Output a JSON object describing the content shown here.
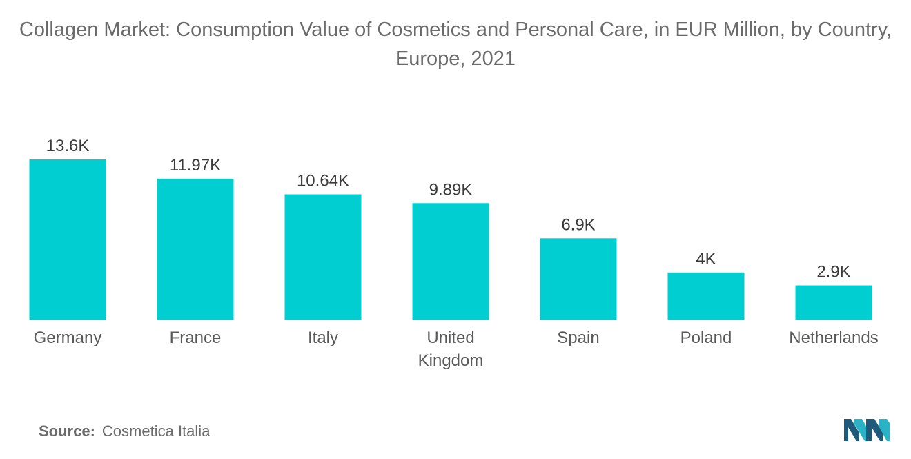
{
  "chart_data": {
    "type": "bar",
    "title": "Collagen Market: Consumption Value of Cosmetics and Personal Care, in EUR Million, by Country, Europe, 2021",
    "categories": [
      "Germany",
      "France",
      "Italy",
      "United Kingdom",
      "Spain",
      "Poland",
      "Netherlands"
    ],
    "category_lines": [
      [
        "Germany"
      ],
      [
        "France"
      ],
      [
        "Italy"
      ],
      [
        "United",
        "Kingdom"
      ],
      [
        "Spain"
      ],
      [
        "Poland"
      ],
      [
        "Netherlands"
      ]
    ],
    "values": [
      13600,
      11970,
      10640,
      9890,
      6900,
      4000,
      2900
    ],
    "data_labels": [
      "13.6K",
      "11.97K",
      "10.64K",
      "9.89K",
      "6.9K",
      "4K",
      "2.9K"
    ],
    "xlabel": "",
    "ylabel": "",
    "ylim": [
      0,
      13600
    ],
    "grid": false,
    "legend": "none",
    "bar_color": "#00CED1"
  },
  "source": {
    "label": "Source:",
    "value": "Cosmetica Italia"
  },
  "colors": {
    "bar": "#00CED1",
    "text": "#595959",
    "logo_dark": "#1f5a7a",
    "logo_light": "#2ab3c6"
  },
  "logo": {
    "icon": "mordor-intelligence-logo"
  }
}
